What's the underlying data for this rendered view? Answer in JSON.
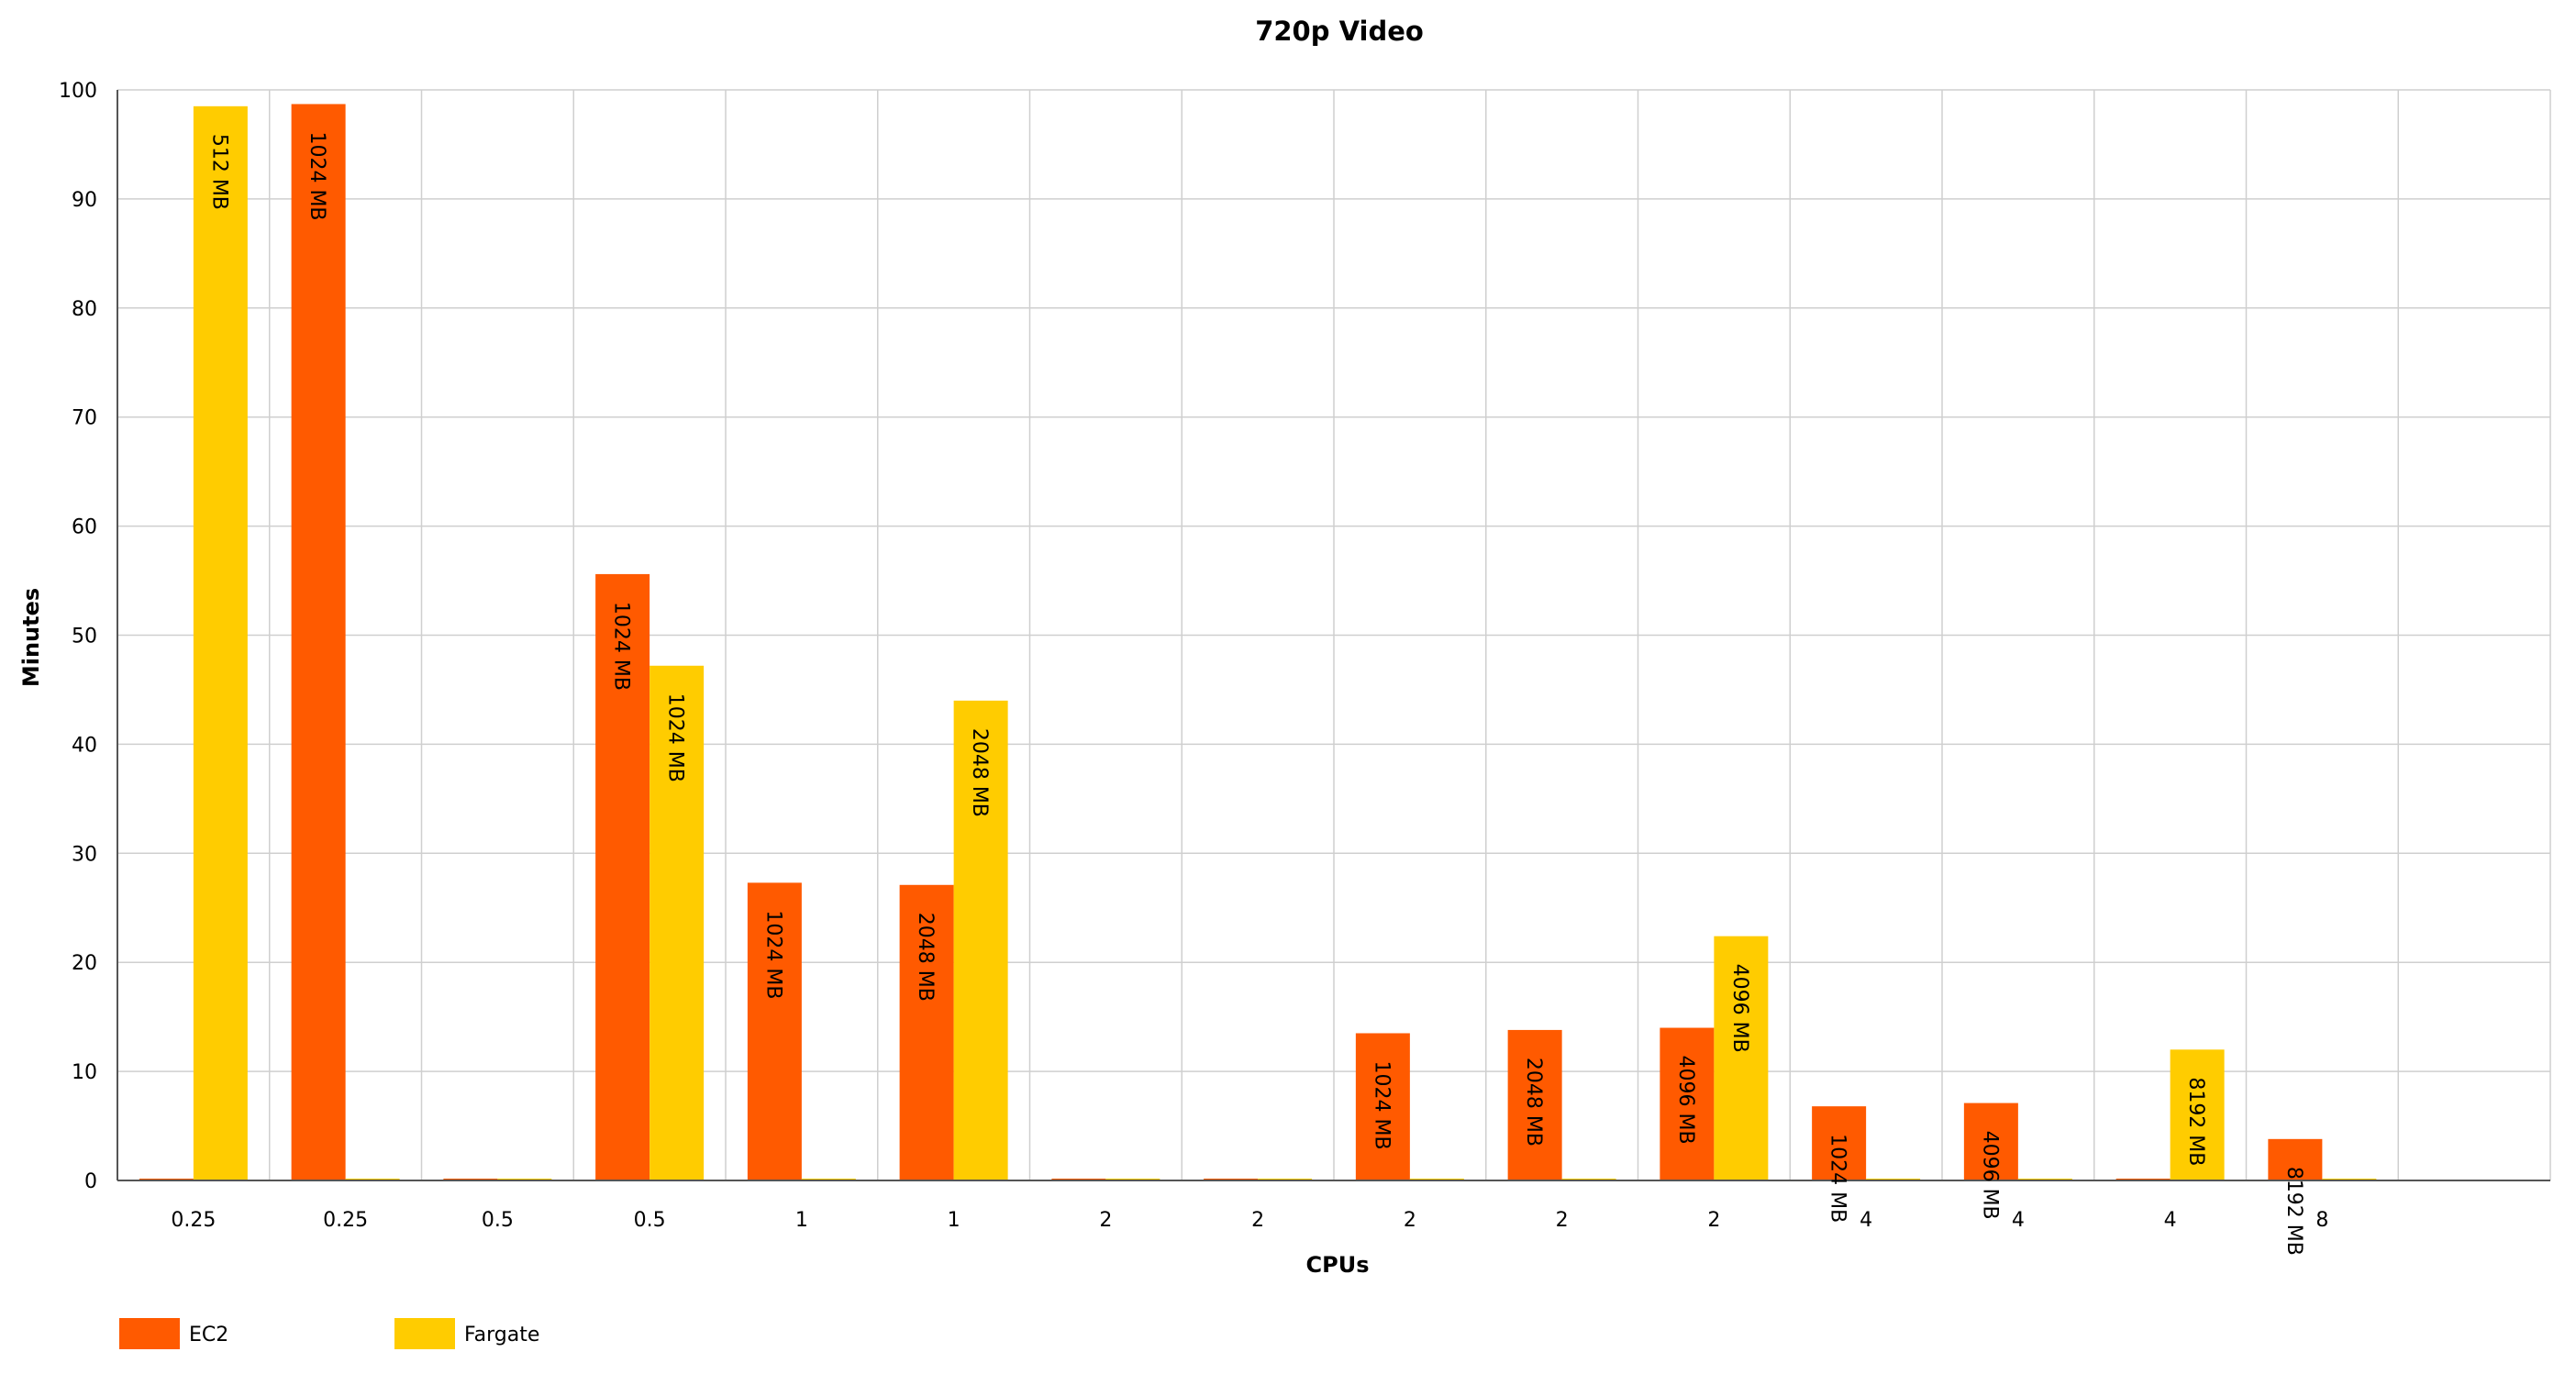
{
  "chart_data": {
    "type": "bar",
    "title": "720p Video",
    "xlabel": "CPUs",
    "ylabel": "Minutes",
    "ylim": [
      0,
      100
    ],
    "yticks": [
      0,
      10,
      20,
      30,
      40,
      50,
      60,
      70,
      80,
      90,
      100
    ],
    "grid": true,
    "legend_position": "bottom-left",
    "categories": [
      "0.25",
      "0.25",
      "0.5",
      "0.5",
      "1",
      "1",
      "2",
      "2",
      "2",
      "2",
      "2",
      "4",
      "4",
      "4",
      "8",
      ""
    ],
    "series": [
      {
        "name": "EC2",
        "color": "#ff5a00",
        "values": [
          0,
          98.7,
          0,
          55.6,
          27.3,
          27.1,
          0,
          0,
          13.5,
          13.8,
          14.0,
          6.8,
          7.1,
          0,
          3.8,
          null
        ],
        "labels": [
          "",
          "1024 MB",
          "",
          "1024 MB",
          "1024 MB",
          "2048 MB",
          "",
          "",
          "1024 MB",
          "2048 MB",
          "4096 MB",
          "1024 MB",
          "4096 MB",
          "",
          "8192 MB",
          ""
        ]
      },
      {
        "name": "Fargate",
        "color": "#ffcc00",
        "values": [
          98.5,
          0,
          0,
          47.2,
          0,
          44.0,
          0,
          0,
          0,
          0,
          22.4,
          0,
          0,
          12.0,
          0,
          null
        ],
        "labels": [
          "512 MB",
          "",
          "",
          "1024 MB",
          "",
          "2048 MB",
          "",
          "",
          "",
          "",
          "4096 MB",
          "",
          "",
          "8192 MB",
          "",
          ""
        ]
      }
    ]
  }
}
